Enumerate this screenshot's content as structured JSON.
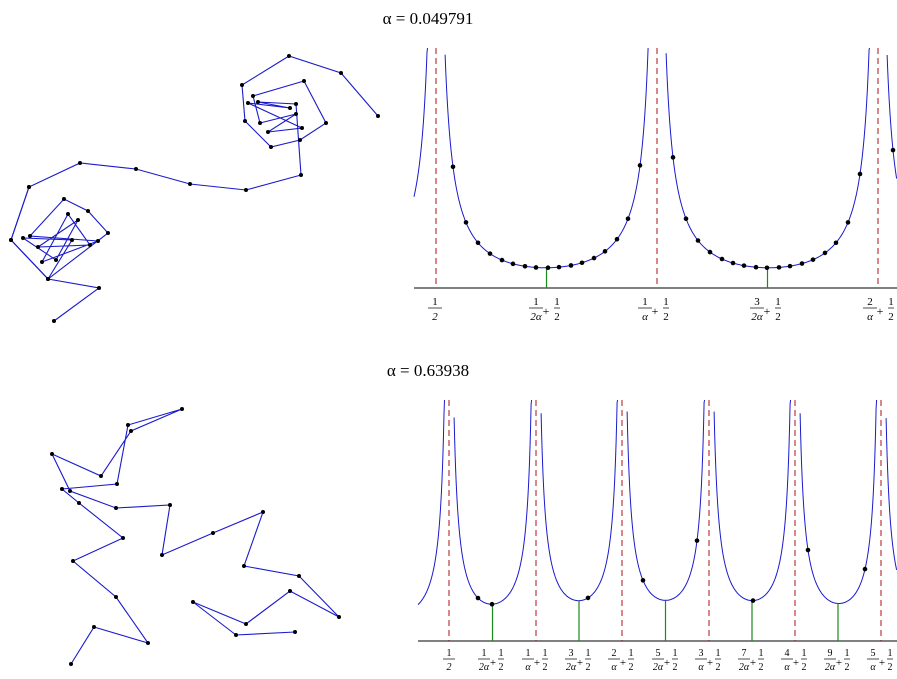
{
  "panels": [
    {
      "title": "α = 0.049791",
      "ticks": [
        {
          "num": "1",
          "den": "2",
          "prefix": "",
          "prefix_den": ""
        },
        {
          "num": "1",
          "den": "2α",
          "suffix": "+",
          "tail_num": "1",
          "tail_den": "2"
        },
        {
          "num": "1",
          "den": "α",
          "suffix": "+",
          "tail_num": "1",
          "tail_den": "2"
        },
        {
          "num": "3",
          "den": "2α",
          "suffix": "+",
          "tail_num": "1",
          "tail_den": "2"
        },
        {
          "num": "2",
          "den": "α",
          "suffix": "+",
          "tail_num": "1",
          "tail_den": "2"
        }
      ]
    },
    {
      "title": "α = 0.63938",
      "ticks": [
        {
          "num": "1",
          "den": "2",
          "prefix": "",
          "prefix_den": ""
        },
        {
          "num": "1",
          "den": "2α",
          "suffix": "+",
          "tail_num": "1",
          "tail_den": "2"
        },
        {
          "num": "1",
          "den": "α",
          "suffix": "+",
          "tail_num": "1",
          "tail_den": "2"
        },
        {
          "num": "3",
          "den": "2α",
          "suffix": "+",
          "tail_num": "1",
          "tail_den": "2"
        },
        {
          "num": "2",
          "den": "α",
          "suffix": "+",
          "tail_num": "1",
          "tail_den": "2"
        },
        {
          "num": "5",
          "den": "2α",
          "suffix": "+",
          "tail_num": "1",
          "tail_den": "2"
        },
        {
          "num": "3",
          "den": "α",
          "suffix": "+",
          "tail_num": "1",
          "tail_den": "2"
        },
        {
          "num": "7",
          "den": "2α",
          "suffix": "+",
          "tail_num": "1",
          "tail_den": "2"
        },
        {
          "num": "4",
          "den": "α",
          "suffix": "+",
          "tail_num": "1",
          "tail_den": "2"
        },
        {
          "num": "9",
          "den": "2α",
          "suffix": "+",
          "tail_num": "1",
          "tail_den": "2"
        },
        {
          "num": "5",
          "den": "α",
          "suffix": "+",
          "tail_num": "1",
          "tail_den": "2"
        }
      ]
    }
  ],
  "colors": {
    "path": "#1a1acc",
    "curve": "#1a1acc",
    "asymptote": "#b01010",
    "minimum_tick": "#1a8a1a",
    "dot": "#000000",
    "axis": "#000000"
  },
  "icons": {
    "vertex": "filled-dot"
  }
}
